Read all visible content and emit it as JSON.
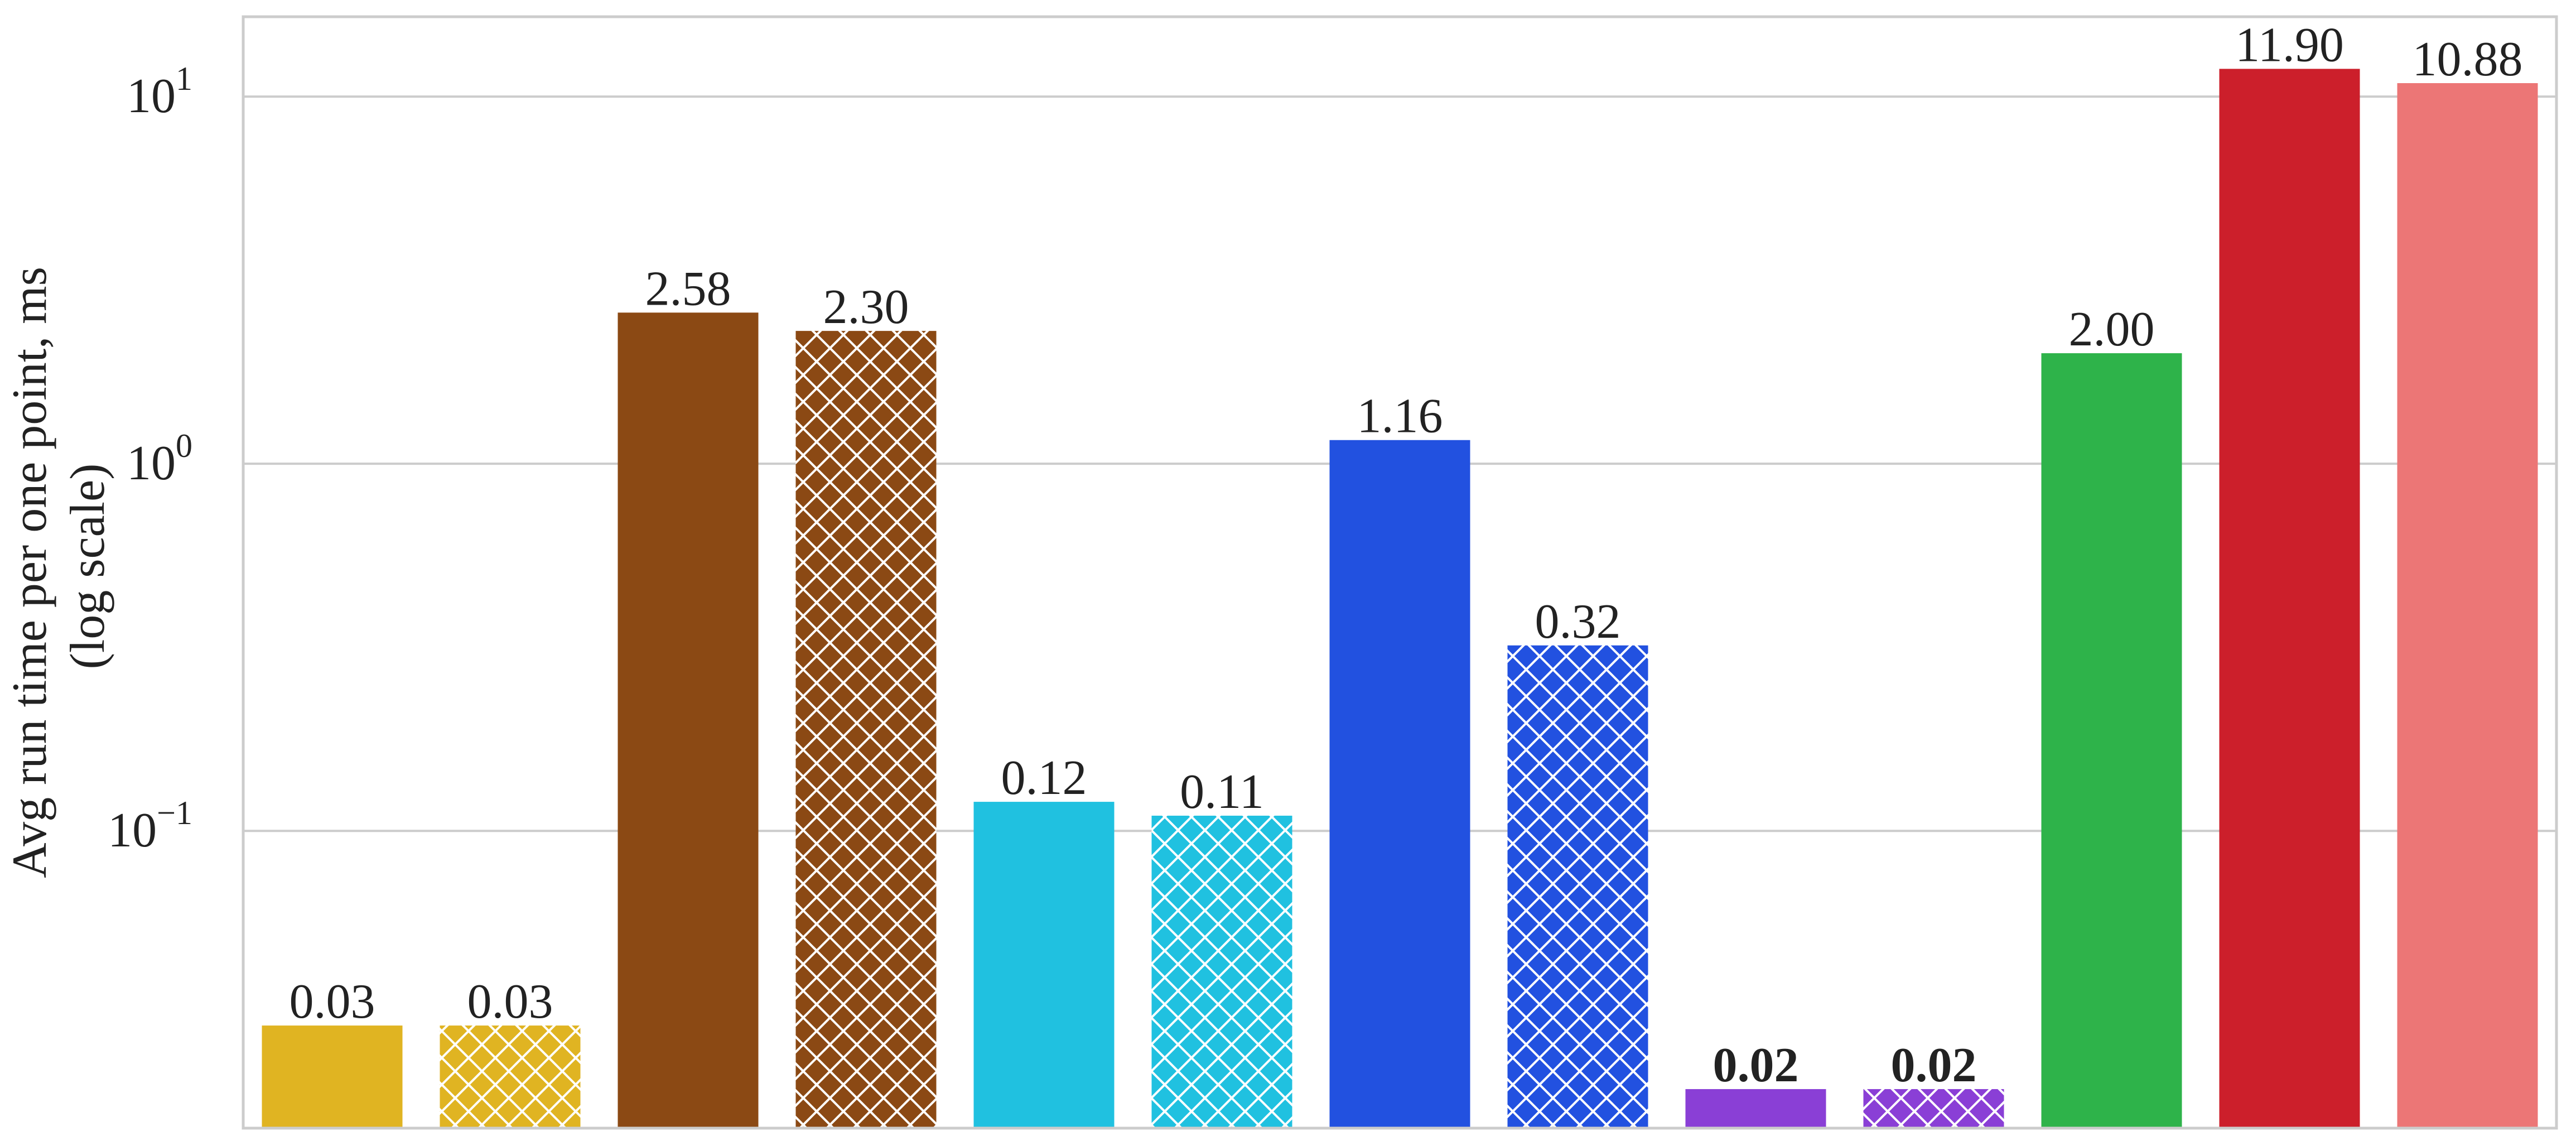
{
  "chart_data": {
    "type": "bar",
    "ylabel": "Avg run time per one point, ms",
    "ylabel_sub": "(log scale)",
    "yscale": "log",
    "ylim": [
      0.0155,
      16.5
    ],
    "yticks": [
      {
        "value": 0.1,
        "base": "10",
        "exp": "−1"
      },
      {
        "value": 1,
        "base": "10",
        "exp": "0"
      },
      {
        "value": 10,
        "base": "10",
        "exp": "1"
      }
    ],
    "grid": "horizontal",
    "legend": "none",
    "xlabel": "",
    "categories": [
      "",
      "",
      "",
      "",
      "",
      "",
      "",
      "",
      "",
      "",
      "",
      "",
      ""
    ],
    "values": [
      0.0295,
      0.0295,
      2.58,
      2.3,
      0.12,
      0.11,
      1.16,
      0.32,
      0.0198,
      0.0198,
      2.0,
      11.9,
      10.88
    ],
    "labels": [
      "0.03",
      "0.03",
      "2.58",
      "2.30",
      "0.12",
      "0.11",
      "1.16",
      "0.32",
      "0.02",
      "0.02",
      "2.00",
      "11.90",
      "10.88"
    ],
    "label_bold": [
      false,
      false,
      false,
      false,
      false,
      false,
      false,
      false,
      true,
      true,
      false,
      false,
      false
    ],
    "colors": [
      "#e0b422",
      "#e0b422",
      "#8b4914",
      "#8b4914",
      "#20c1e0",
      "#20c1e0",
      "#2251e0",
      "#2251e0",
      "#8a3fd6",
      "#8a3fd6",
      "#2eb34a",
      "#cc1f2b",
      "#ec7676"
    ],
    "hatched": [
      false,
      true,
      false,
      true,
      false,
      true,
      false,
      true,
      false,
      true,
      false,
      false,
      false
    ]
  }
}
